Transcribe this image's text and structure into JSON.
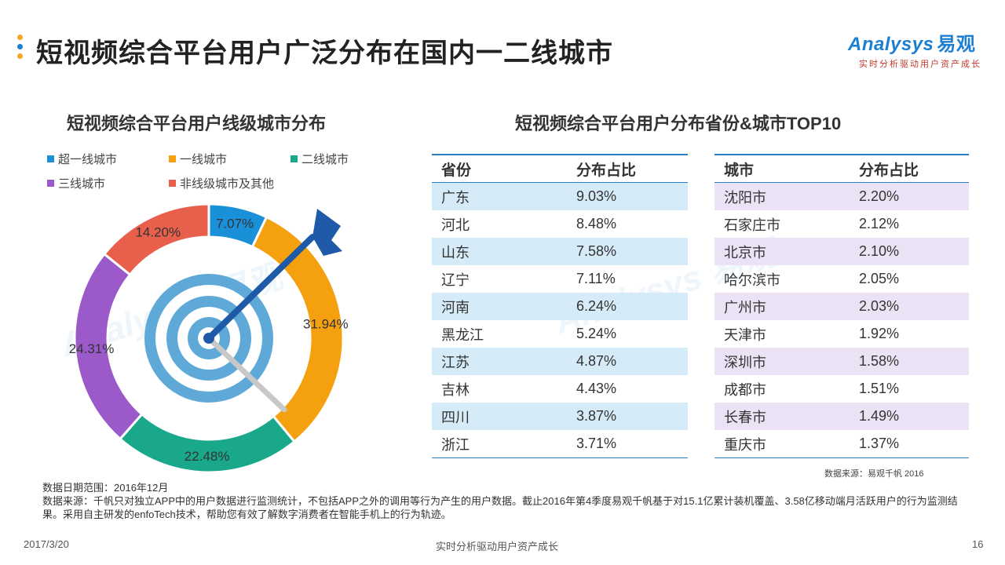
{
  "header": {
    "title": "短视频综合平台用户广泛分布在国内一二线城市",
    "dot_colors": [
      "#f5a623",
      "#1d7fd1",
      "#f5a623"
    ]
  },
  "logo": {
    "brand_en": "Analysys",
    "brand_cn": "易观",
    "tagline": "实时分析驱动用户资产成长",
    "color": "#1d7fd1"
  },
  "left_chart": {
    "title": "短视频综合平台用户线级城市分布"
  },
  "right_section": {
    "title": "短视频综合平台用户分布省份&城市TOP10",
    "province_table": {
      "headers": [
        "省份",
        "分布占比"
      ],
      "rows": [
        [
          "广东",
          "9.03%"
        ],
        [
          "河北",
          "8.48%"
        ],
        [
          "山东",
          "7.58%"
        ],
        [
          "辽宁",
          "7.11%"
        ],
        [
          "河南",
          "6.24%"
        ],
        [
          "黑龙江",
          "5.24%"
        ],
        [
          "江苏",
          "4.87%"
        ],
        [
          "吉林",
          "4.43%"
        ],
        [
          "四川",
          "3.87%"
        ],
        [
          "浙江",
          "3.71%"
        ]
      ]
    },
    "city_table": {
      "headers": [
        "城市",
        "分布占比"
      ],
      "rows": [
        [
          "沈阳市",
          "2.20%"
        ],
        [
          "石家庄市",
          "2.12%"
        ],
        [
          "北京市",
          "2.10%"
        ],
        [
          "哈尔滨市",
          "2.05%"
        ],
        [
          "广州市",
          "2.03%"
        ],
        [
          "天津市",
          "1.92%"
        ],
        [
          "深圳市",
          "1.58%"
        ],
        [
          "成都市",
          "1.51%"
        ],
        [
          "长春市",
          "1.49%"
        ],
        [
          "重庆市",
          "1.37%"
        ]
      ]
    },
    "source": "数据来源：易观千帆 2016"
  },
  "notes": {
    "date_range": "数据日期范围：2016年12月",
    "source_desc": "数据来源：千帆只对独立APP中的用户数据进行监测统计，不包括APP之外的调用等行为产生的用户数据。截止2016年第4季度易观千帆基于对15.1亿累计装机覆盖、3.58亿移动端月活跃用户的行为监测结果。采用自主研发的enfoTech技术，帮助您有效了解数字消费者在智能手机上的行为轨迹。"
  },
  "footer": {
    "date": "2017/3/20",
    "tagline": "实时分析驱动用户资产成长",
    "page": "16"
  },
  "chart_data": {
    "type": "pie",
    "title": "短视频综合平台用户线级城市分布",
    "categories": [
      "超一线城市",
      "一线城市",
      "二线城市",
      "三线城市",
      "非线级城市及其他"
    ],
    "values": [
      7.07,
      31.94,
      22.48,
      24.31,
      14.2
    ],
    "labels": [
      "7.07%",
      "31.94%",
      "22.48%",
      "24.31%",
      "14.20%"
    ],
    "colors": [
      "#1a90d9",
      "#f5a00f",
      "#1aa88a",
      "#9b59c9",
      "#e8604c"
    ],
    "legend_position": "top"
  }
}
